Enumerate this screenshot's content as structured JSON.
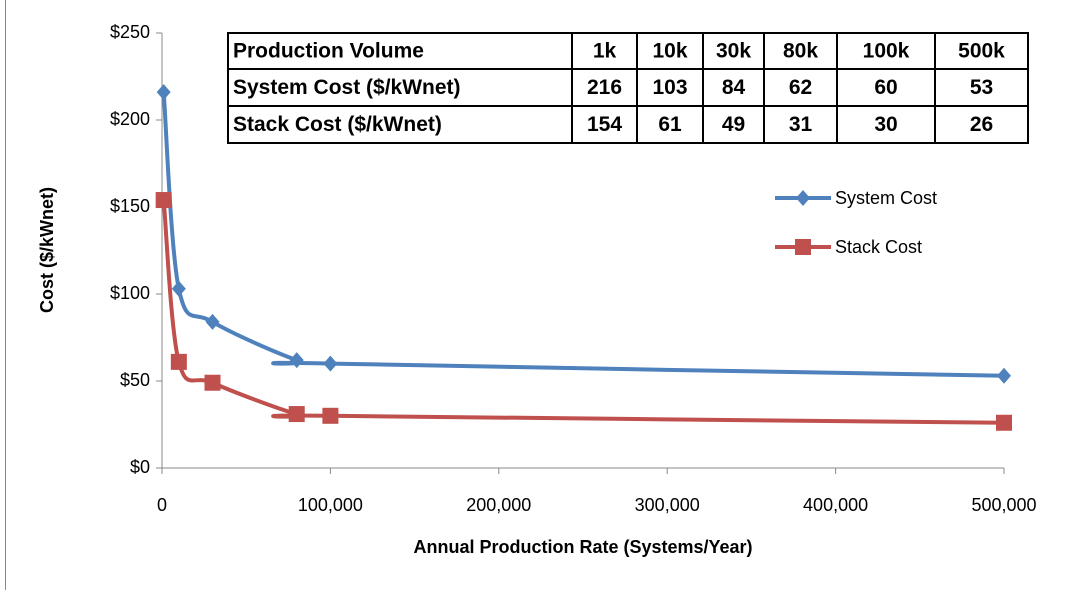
{
  "chart_data": {
    "type": "line",
    "x_label": "Annual Production Rate (Systems/Year)",
    "y_label": "Cost ($/kWnet)",
    "x": [
      1000,
      10000,
      30000,
      80000,
      100000,
      500000
    ],
    "series": [
      {
        "name": "System Cost",
        "color": "#4f81bd",
        "marker": "diamond",
        "values": [
          216,
          103,
          84,
          62,
          60,
          53
        ]
      },
      {
        "name": "Stack Cost",
        "color": "#c0504d",
        "marker": "square",
        "values": [
          154,
          61,
          49,
          31,
          30,
          26
        ]
      }
    ],
    "xlim": [
      0,
      500000
    ],
    "xticks": [
      0,
      {
        "value": 100000,
        "label": "100,000"
      },
      {
        "value": 200000,
        "label": "200,000"
      },
      {
        "value": 300000,
        "label": "300,000"
      },
      {
        "value": 400000,
        "label": "400,000"
      },
      {
        "value": 500000,
        "label": "500,000"
      }
    ],
    "ylim": [
      0,
      250
    ],
    "yticks": [
      {
        "value": 0,
        "label": "$0"
      },
      {
        "value": 50,
        "label": "$50"
      },
      {
        "value": 100,
        "label": "$100"
      },
      {
        "value": 150,
        "label": "$150"
      },
      {
        "value": 200,
        "label": "$200"
      },
      {
        "value": 250,
        "label": "$250"
      }
    ],
    "grid": false,
    "smooth": true,
    "legend": "right",
    "table": {
      "header": "Production Volume",
      "columns": [
        "1k",
        "10k",
        "30k",
        "80k",
        "100k",
        "500k"
      ],
      "rows": [
        "System Cost ($/kWnet)",
        "Stack Cost ($/kWnet)"
      ]
    }
  }
}
